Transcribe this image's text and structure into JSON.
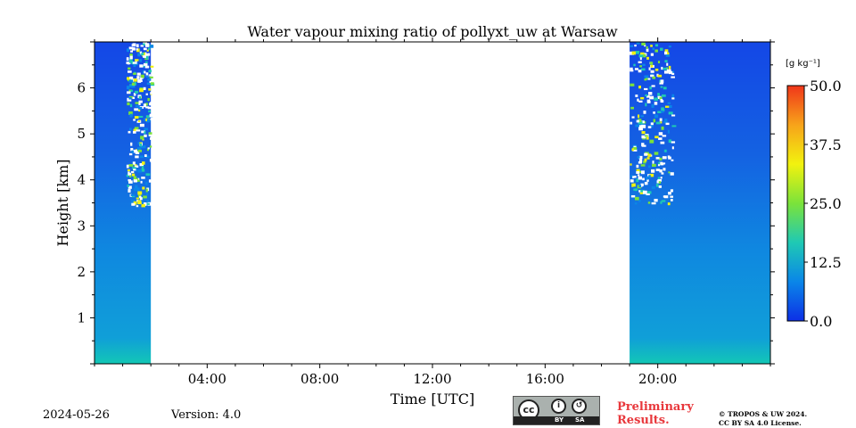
{
  "chart_data": {
    "type": "heatmap",
    "title": "Water vapour mixing ratio of pollyxt_uw at Warsaw",
    "xlabel": "Time [UTC]",
    "ylabel": "Height [km]",
    "x_tick_labels": [
      "04:00",
      "08:00",
      "12:00",
      "16:00",
      "20:00"
    ],
    "x_ticks_hours": [
      4,
      8,
      12,
      16,
      20
    ],
    "x_range_hours": [
      0,
      24
    ],
    "y_ticks": [
      1,
      2,
      3,
      4,
      5,
      6
    ],
    "y_range_km": [
      0,
      7
    ],
    "colorbar": {
      "unit": "[g kg⁻¹]",
      "ticks": [
        "0.0",
        "12.5",
        "25.0",
        "37.5",
        "50.0"
      ],
      "range": [
        0,
        50
      ],
      "colors": [
        "#0d2fe6",
        "#0a86e8",
        "#1fc9b4",
        "#7be33a",
        "#f2f20f",
        "#f7a31a",
        "#f0361a"
      ]
    },
    "data_segments": [
      {
        "start_hour": 0.0,
        "end_hour": 2.0,
        "top_km": 7.0,
        "lower_fill_top_km": 3.4
      },
      {
        "start_hour": 19.0,
        "end_hour": 24.0,
        "top_km": 7.0,
        "lower_fill_top_km": 3.5
      }
    ],
    "background_values_g_per_kg": {
      "near_surface": 9,
      "mid": 5,
      "upper": 3
    }
  },
  "footer": {
    "date": "2024-05-26",
    "version": "Version: 4.0",
    "license_badge": {
      "by": "BY",
      "sa": "SA"
    },
    "preliminary_line1": "Preliminary",
    "preliminary_line2": "Results.",
    "copyright_line1": "© TROPOS & UW 2024.",
    "copyright_line2": "CC BY SA 4.0 License.",
    "prelim_color": "#e8383c"
  }
}
